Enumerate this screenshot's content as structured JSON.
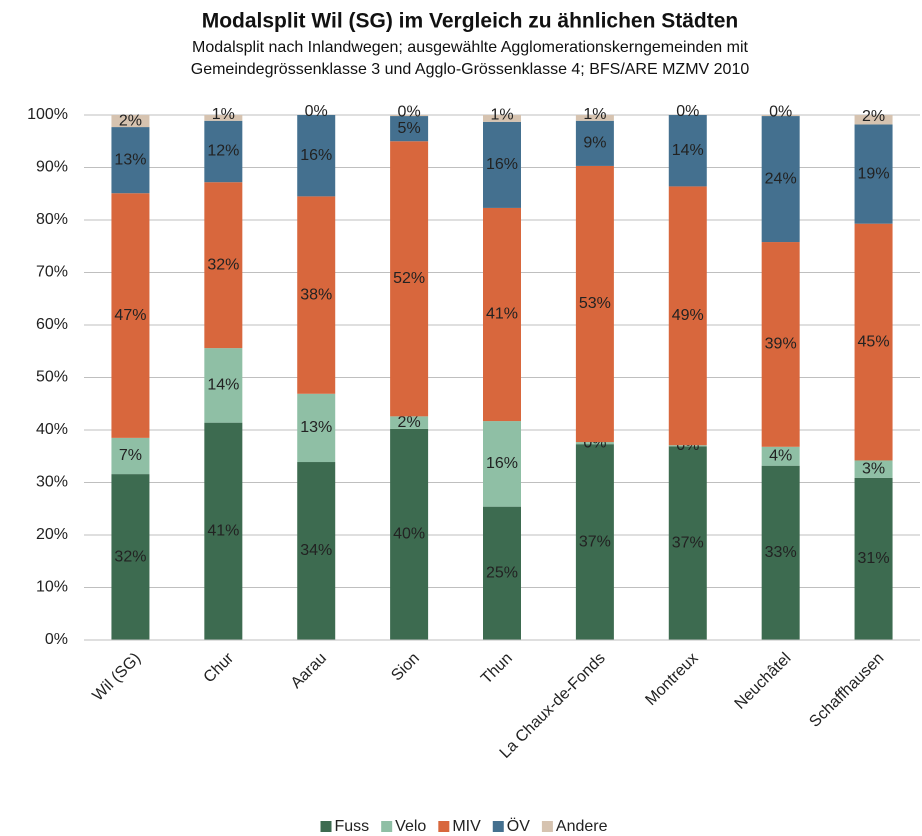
{
  "chart_data": {
    "type": "stacked_bar",
    "title": "Modalsplit Wil (SG) im Vergleich zu ähnlichen Städten",
    "subtitle": [
      "Modalsplit nach Inlandwegen; ausgewählte Agglomerationskerngemeinden mit",
      "Gemeindegrössenklasse 3 und Agglo-Grössenklasse 4; BFS/ARE MZMV 2010"
    ],
    "categories": [
      "Wil (SG)",
      "Chur",
      "Aarau",
      "Sion",
      "Thun",
      "La Chaux-de-Fonds",
      "Montreux",
      "Neuchâtel",
      "Schaffhausen"
    ],
    "series": [
      {
        "name": "Fuss",
        "color": "#3d6b50",
        "values": [
          31.6,
          41.4,
          33.9,
          40.2,
          25.4,
          37.3,
          36.9,
          33.2,
          30.9
        ],
        "value_labels": [
          "32%",
          "41%",
          "34%",
          "40%",
          "25%",
          "37%",
          "37%",
          "33%",
          "31%"
        ]
      },
      {
        "name": "Velo",
        "color": "#8fbfa5",
        "values": [
          6.9,
          14.2,
          13.0,
          2.4,
          16.3,
          0.4,
          0.2,
          3.6,
          3.3
        ],
        "value_labels": [
          "7%",
          "14%",
          "13%",
          "2%",
          "16%",
          "0%",
          "0%",
          "4%",
          "3%"
        ]
      },
      {
        "name": "MIV",
        "color": "#d8673d",
        "values": [
          46.6,
          31.6,
          37.6,
          52.4,
          40.6,
          52.6,
          49.3,
          39.0,
          45.1
        ],
        "value_labels": [
          "47%",
          "32%",
          "38%",
          "52%",
          "41%",
          "53%",
          "49%",
          "39%",
          "45%"
        ]
      },
      {
        "name": "ÖV",
        "color": "#44708f",
        "values": [
          12.6,
          11.7,
          15.5,
          4.8,
          16.4,
          8.6,
          13.6,
          24.0,
          18.9
        ],
        "value_labels": [
          "13%",
          "12%",
          "16%",
          "5%",
          "16%",
          "9%",
          "14%",
          "24%",
          "19%"
        ]
      },
      {
        "name": "Andere",
        "color": "#d6c3b0",
        "values": [
          2.3,
          1.1,
          0,
          0.2,
          1.3,
          1.1,
          0,
          0.2,
          1.8
        ],
        "value_labels": [
          "2%",
          "1%",
          "0%",
          "0%",
          "1%",
          "1%",
          "0%",
          "0%",
          "2%"
        ]
      }
    ],
    "ylim": [
      0,
      100
    ],
    "yticks": [
      {
        "value": 0,
        "label": "0%"
      },
      {
        "value": 10,
        "label": "10%"
      },
      {
        "value": 20,
        "label": "20%"
      },
      {
        "value": 30,
        "label": "30%"
      },
      {
        "value": 40,
        "label": "40%"
      },
      {
        "value": 50,
        "label": "50%"
      },
      {
        "value": 60,
        "label": "60%"
      },
      {
        "value": 70,
        "label": "70%"
      },
      {
        "value": 80,
        "label": "80%"
      },
      {
        "value": 90,
        "label": "90%"
      },
      {
        "value": 100,
        "label": "100%"
      }
    ],
    "grid": true,
    "legend": "bottom"
  }
}
